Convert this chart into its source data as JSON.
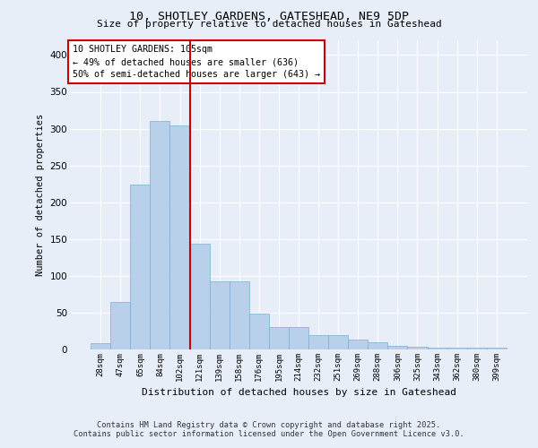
{
  "title_line1": "10, SHOTLEY GARDENS, GATESHEAD, NE9 5DP",
  "title_line2": "Size of property relative to detached houses in Gateshead",
  "xlabel": "Distribution of detached houses by size in Gateshead",
  "ylabel": "Number of detached properties",
  "categories": [
    "28sqm",
    "47sqm",
    "65sqm",
    "84sqm",
    "102sqm",
    "121sqm",
    "139sqm",
    "158sqm",
    "176sqm",
    "195sqm",
    "214sqm",
    "232sqm",
    "251sqm",
    "269sqm",
    "288sqm",
    "306sqm",
    "325sqm",
    "343sqm",
    "362sqm",
    "380sqm",
    "399sqm"
  ],
  "values": [
    9,
    65,
    224,
    311,
    304,
    144,
    93,
    93,
    49,
    31,
    31,
    20,
    20,
    14,
    10,
    5,
    4,
    3,
    2,
    2,
    3
  ],
  "bar_color": "#b8d0ea",
  "bar_edge_color": "#7aafd4",
  "vline_x_index": 4,
  "vline_color": "#cc0000",
  "annotation_text": "10 SHOTLEY GARDENS: 105sqm\n← 49% of detached houses are smaller (636)\n50% of semi-detached houses are larger (643) →",
  "annotation_box_color": "#ffffff",
  "annotation_box_edge": "#cc0000",
  "background_color": "#e8eef8",
  "grid_color": "#ffffff",
  "footer_line1": "Contains HM Land Registry data © Crown copyright and database right 2025.",
  "footer_line2": "Contains public sector information licensed under the Open Government Licence v3.0.",
  "ylim": [
    0,
    420
  ],
  "yticks": [
    0,
    50,
    100,
    150,
    200,
    250,
    300,
    350,
    400
  ]
}
